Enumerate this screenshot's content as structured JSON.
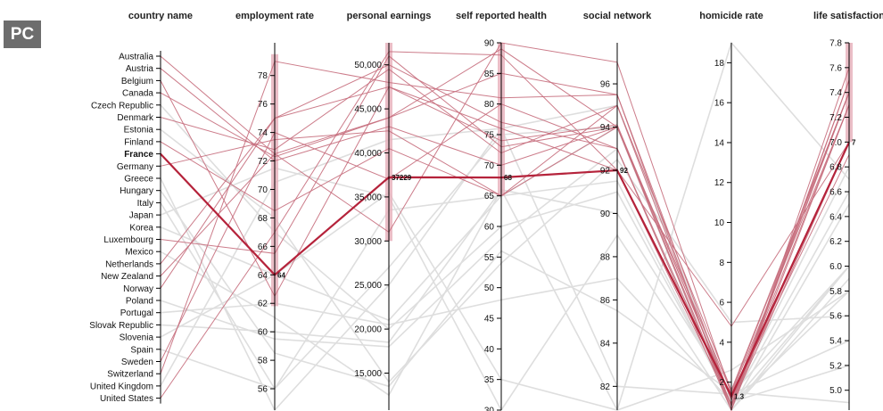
{
  "badge": "PC",
  "colors": {
    "highlight": "#b5233b",
    "selected": "#c76e7d",
    "brushed": "#dedede",
    "background": "#e9e9e9",
    "brush": "#e7b3bd"
  },
  "chart_data": {
    "type": "parallel-coordinates",
    "highlighted": "France",
    "axes": [
      {
        "key": "country",
        "title": "country name",
        "kind": "categorical",
        "categories": [
          "Australia",
          "Austria",
          "Belgium",
          "Canada",
          "Czech Republic",
          "Denmark",
          "Estonia",
          "Finland",
          "France",
          "Germany",
          "Greece",
          "Hungary",
          "Italy",
          "Japan",
          "Korea",
          "Luxembourg",
          "Mexico",
          "Netherlands",
          "New Zealand",
          "Norway",
          "Poland",
          "Portugal",
          "Slovak Republic",
          "Slovenia",
          "Spain",
          "Sweden",
          "Switzerland",
          "United Kingdom",
          "United States"
        ]
      },
      {
        "key": "employment",
        "title": "employment rate",
        "kind": "numeric",
        "range": [
          54.5,
          80.3
        ],
        "ticks": [
          "56",
          "58",
          "60",
          "62",
          "64",
          "66",
          "68",
          "70",
          "72",
          "74",
          "76",
          "78"
        ],
        "brush": [
          61.8,
          79.5
        ],
        "highlight_label": "64"
      },
      {
        "key": "earnings",
        "title": "personal earnings",
        "kind": "numeric",
        "range": [
          10800,
          52500
        ],
        "ticks": [
          "15,000",
          "20,000",
          "25,000",
          "30,000",
          "35,000",
          "40,000",
          "45,000",
          "50,000"
        ],
        "brush": [
          30000,
          52500
        ],
        "highlight_label": "37229"
      },
      {
        "key": "health",
        "title": "self reported health",
        "kind": "numeric",
        "range": [
          30,
          90
        ],
        "ticks": [
          "30",
          "35",
          "40",
          "45",
          "50",
          "55",
          "60",
          "65",
          "70",
          "75",
          "80",
          "85",
          "90"
        ],
        "brush": [
          65,
          90
        ],
        "highlight_label": "68"
      },
      {
        "key": "network",
        "title": "social network",
        "kind": "numeric",
        "range": [
          80.9,
          97.9
        ],
        "ticks": [
          "82",
          "84",
          "86",
          "88",
          "90",
          "92",
          "94",
          "96"
        ],
        "brush": null,
        "highlight_label": "92"
      },
      {
        "key": "homicide",
        "title": "homicide rate",
        "kind": "numeric",
        "range": [
          0.6,
          19
        ],
        "ticks": [
          "2",
          "4",
          "6",
          "8",
          "10",
          "12",
          "14",
          "16",
          "18"
        ],
        "brush": null,
        "highlight_label": "1.3"
      },
      {
        "key": "life",
        "title": "life satisfaction",
        "kind": "numeric",
        "range": [
          4.84,
          7.8
        ],
        "ticks": [
          "5.0",
          "5.2",
          "5.4",
          "5.6",
          "5.8",
          "6.0",
          "6.2",
          "6.4",
          "6.6",
          "6.8",
          "7.0",
          "7.2",
          "7.4",
          "7.6",
          "7.8"
        ],
        "brush": [
          7.0,
          7.8
        ],
        "highlight_label": "7"
      }
    ],
    "rows": [
      {
        "country": "Australia",
        "employment": 72.5,
        "earnings": 44000,
        "health": 85,
        "network": 95.5,
        "homicide": 1.1,
        "life": 7.4,
        "group": "selected"
      },
      {
        "country": "Austria",
        "employment": 72.0,
        "earnings": 43000,
        "health": 70,
        "network": 94.0,
        "homicide": 0.5,
        "life": 7.3,
        "group": "selected"
      },
      {
        "country": "Belgium",
        "employment": 62.5,
        "earnings": 47500,
        "health": 74,
        "network": 94.1,
        "homicide": 1.1,
        "life": 7.0,
        "group": "selected"
      },
      {
        "country": "Canada",
        "employment": 72.3,
        "earnings": 44000,
        "health": 89,
        "network": 94.0,
        "homicide": 1.5,
        "life": 7.4,
        "group": "selected"
      },
      {
        "country": "Czech Republic",
        "employment": 67.0,
        "earnings": 20000,
        "health": 60,
        "network": 91.0,
        "homicide": 1.0,
        "life": 6.6,
        "group": "brushed"
      },
      {
        "country": "Denmark",
        "employment": 72.8,
        "earnings": 49500,
        "health": 72,
        "network": 95.0,
        "homicide": 0.8,
        "life": 7.5,
        "group": "selected"
      },
      {
        "country": "Estonia",
        "employment": 68.0,
        "earnings": 14000,
        "health": 54,
        "network": 92.5,
        "homicide": 5.0,
        "life": 5.6,
        "group": "brushed"
      },
      {
        "country": "Finland",
        "employment": 68.5,
        "earnings": 40500,
        "health": 65,
        "network": 95.0,
        "homicide": 1.6,
        "life": 7.4,
        "group": "selected"
      },
      {
        "country": "France",
        "employment": 64.0,
        "earnings": 37229,
        "health": 68,
        "network": 92.0,
        "homicide": 1.3,
        "life": 7.0,
        "group": "highlight"
      },
      {
        "country": "Germany",
        "employment": 73.5,
        "earnings": 42500,
        "health": 65,
        "network": 94.0,
        "homicide": 0.8,
        "life": 7.0,
        "group": "selected"
      },
      {
        "country": "Greece",
        "employment": 51.0,
        "earnings": 25000,
        "health": 76,
        "network": 82.0,
        "homicide": 1.4,
        "life": 5.4,
        "group": "brushed"
      },
      {
        "country": "Hungary",
        "employment": 58.5,
        "earnings": 13500,
        "health": 56,
        "network": 85.5,
        "homicide": 1.5,
        "life": 4.9,
        "group": "brushed"
      },
      {
        "country": "Italy",
        "employment": 56.0,
        "earnings": 33500,
        "health": 65,
        "network": 91.5,
        "homicide": 0.9,
        "life": 6.0,
        "group": "brushed"
      },
      {
        "country": "Japan",
        "employment": 71.5,
        "earnings": 35000,
        "health": 30,
        "network": 89.0,
        "homicide": 0.4,
        "life": 5.9,
        "group": "brushed"
      },
      {
        "country": "Korea",
        "employment": 64.0,
        "earnings": 35500,
        "health": 35,
        "network": 77.0,
        "homicide": 2.6,
        "life": 5.8,
        "group": "brushed"
      },
      {
        "country": "Luxembourg",
        "employment": 65.5,
        "earnings": 51000,
        "health": 73,
        "network": 94.0,
        "homicide": 1.2,
        "life": 6.9,
        "group": "selected"
      },
      {
        "country": "Mexico",
        "employment": 61.0,
        "earnings": 12500,
        "health": 66,
        "network": 77.0,
        "homicide": 23.0,
        "life": 6.7,
        "group": "brushed"
      },
      {
        "country": "Netherlands",
        "employment": 75.0,
        "earnings": 47500,
        "health": 76,
        "network": 92.0,
        "homicide": 0.9,
        "life": 7.4,
        "group": "selected"
      },
      {
        "country": "New Zealand",
        "employment": 72.5,
        "earnings": 31000,
        "health": 90,
        "network": 97.0,
        "homicide": 1.4,
        "life": 7.3,
        "group": "selected"
      },
      {
        "country": "Norway",
        "employment": 75.0,
        "earnings": 50000,
        "health": 77,
        "network": 93.0,
        "homicide": 0.6,
        "life": 7.6,
        "group": "selected"
      },
      {
        "country": "Poland",
        "employment": 59.5,
        "earnings": 18000,
        "health": 58,
        "network": 93.0,
        "homicide": 0.9,
        "life": 5.8,
        "group": "brushed"
      },
      {
        "country": "Portugal",
        "employment": 62.0,
        "earnings": 20500,
        "health": 48,
        "network": 87.0,
        "homicide": 1.0,
        "life": 5.2,
        "group": "brushed"
      },
      {
        "country": "Slovak Republic",
        "employment": 60.0,
        "earnings": 18500,
        "health": 66,
        "network": 90.0,
        "homicide": 1.4,
        "life": 6.0,
        "group": "brushed"
      },
      {
        "country": "Slovenia",
        "employment": 64.0,
        "earnings": 21000,
        "health": 65,
        "network": 94.0,
        "homicide": 0.6,
        "life": 6.0,
        "group": "brushed"
      },
      {
        "country": "Spain",
        "employment": 56.0,
        "earnings": 27000,
        "health": 75,
        "network": 94.0,
        "homicide": 0.7,
        "life": 6.5,
        "group": "brushed"
      },
      {
        "country": "Sweden",
        "employment": 74.0,
        "earnings": 37000,
        "health": 80,
        "network": 93.0,
        "homicide": 0.9,
        "life": 7.3,
        "group": "selected"
      },
      {
        "country": "Switzerland",
        "employment": 79.0,
        "earnings": 48000,
        "health": 81,
        "network": 95.5,
        "homicide": 0.5,
        "life": 7.5,
        "group": "selected"
      },
      {
        "country": "United Kingdom",
        "employment": 70.5,
        "earnings": 41500,
        "health": 76,
        "network": 95.0,
        "homicide": 1.1,
        "life": 6.8,
        "group": "brushed"
      },
      {
        "country": "United States",
        "employment": 67.0,
        "earnings": 51500,
        "health": 88,
        "network": 92.0,
        "homicide": 4.8,
        "life": 7.0,
        "group": "selected"
      }
    ]
  }
}
